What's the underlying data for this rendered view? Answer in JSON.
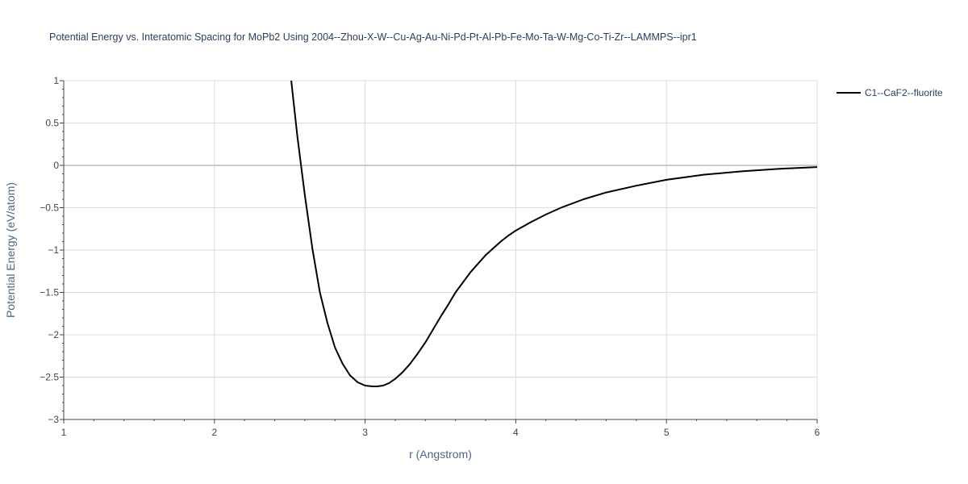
{
  "chart_data": {
    "type": "line",
    "title": "Potential Energy vs. Interatomic Spacing for MoPb2 Using 2004--Zhou-X-W--Cu-Ag-Au-Ni-Pd-Pt-Al-Pb-Fe-Mo-Ta-W-Mg-Co-Ti-Zr--LAMMPS--ipr1",
    "xlabel": "r (Angstrom)",
    "ylabel": "Potential Energy (eV/atom)",
    "xlim": [
      1,
      6
    ],
    "ylim": [
      -3,
      1
    ],
    "xticks": [
      1,
      2,
      3,
      4,
      5,
      6
    ],
    "xtick_labels": [
      "1",
      "2",
      "3",
      "4",
      "5",
      "6"
    ],
    "yticks": [
      1,
      0.5,
      0,
      -0.5,
      -1,
      -1.5,
      -2,
      -2.5,
      -3
    ],
    "ytick_labels": [
      "1",
      "0.5",
      "0",
      "−0.5",
      "−1",
      "−1.5",
      "−2",
      "−2.5",
      "−3"
    ],
    "grid": true,
    "legend_position": "top-right",
    "series": [
      {
        "name": "C1--CaF2--fluorite",
        "color": "#000000",
        "x": [
          2.51,
          2.55,
          2.6,
          2.65,
          2.7,
          2.75,
          2.8,
          2.85,
          2.9,
          2.95,
          3.0,
          3.05,
          3.08,
          3.12,
          3.16,
          3.2,
          3.25,
          3.3,
          3.35,
          3.4,
          3.45,
          3.5,
          3.55,
          3.6,
          3.65,
          3.7,
          3.75,
          3.8,
          3.85,
          3.9,
          3.95,
          4.0,
          4.1,
          4.2,
          4.3,
          4.45,
          4.6,
          4.8,
          5.0,
          5.25,
          5.5,
          5.75,
          6.0
        ],
        "y": [
          1.0,
          0.35,
          -0.35,
          -0.98,
          -1.5,
          -1.86,
          -2.15,
          -2.34,
          -2.48,
          -2.56,
          -2.6,
          -2.61,
          -2.61,
          -2.6,
          -2.57,
          -2.52,
          -2.44,
          -2.34,
          -2.22,
          -2.09,
          -1.94,
          -1.79,
          -1.65,
          -1.5,
          -1.38,
          -1.26,
          -1.16,
          -1.06,
          -0.98,
          -0.9,
          -0.83,
          -0.77,
          -0.67,
          -0.58,
          -0.5,
          -0.4,
          -0.32,
          -0.24,
          -0.17,
          -0.11,
          -0.07,
          -0.04,
          -0.02
        ]
      }
    ]
  }
}
